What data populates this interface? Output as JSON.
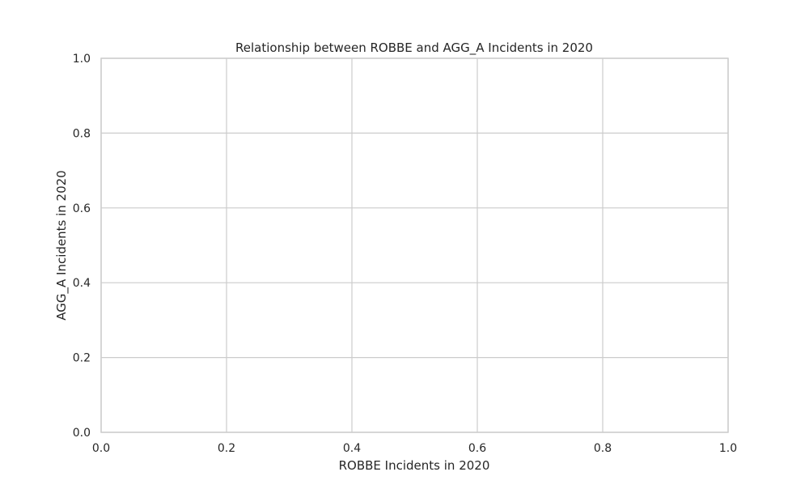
{
  "chart_data": {
    "type": "scatter",
    "title": "Relationship between ROBBE and AGG_A Incidents in 2020",
    "xlabel": "ROBBE Incidents in 2020",
    "ylabel": "AGG_A Incidents in 2020",
    "xlim": [
      0.0,
      1.0
    ],
    "ylim": [
      0.0,
      1.0
    ],
    "xticks": [
      "0.0",
      "0.2",
      "0.4",
      "0.6",
      "0.8",
      "1.0"
    ],
    "yticks": [
      "0.0",
      "0.2",
      "0.4",
      "0.6",
      "0.8",
      "1.0"
    ],
    "grid": true,
    "series": [],
    "colors": {
      "background": "#ffffff",
      "grid": "#cccccc",
      "spine": "#cccccc",
      "text": "#262626"
    }
  }
}
